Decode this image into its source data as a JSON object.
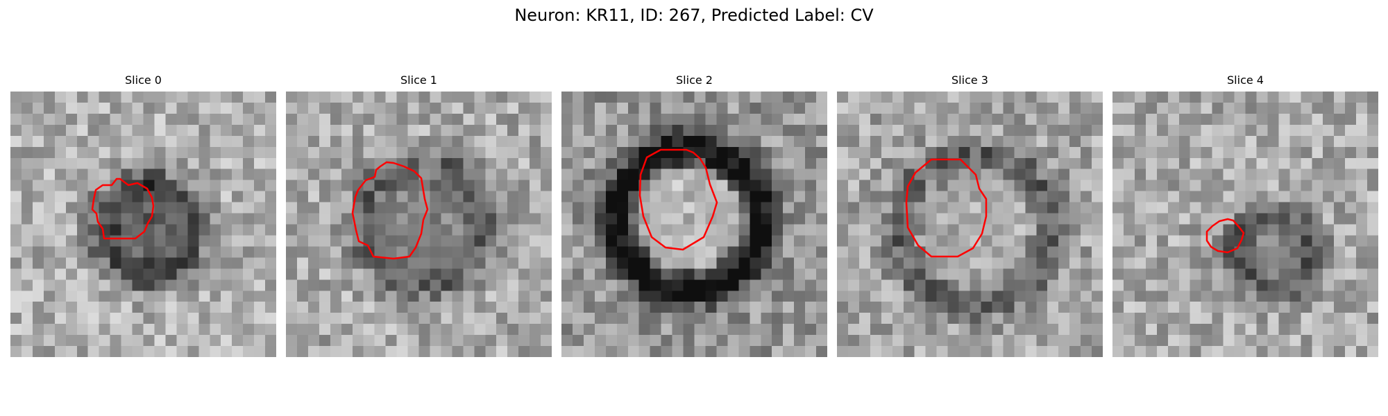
{
  "title": "Neuron: KR11, ID: 267, Predicted Label: CV",
  "contour_color": "#ff0000",
  "panels": [
    {
      "title": "Slice 0"
    },
    {
      "title": "Slice 1"
    },
    {
      "title": "Slice 2"
    },
    {
      "title": "Slice 3"
    },
    {
      "title": "Slice 4"
    }
  ]
}
